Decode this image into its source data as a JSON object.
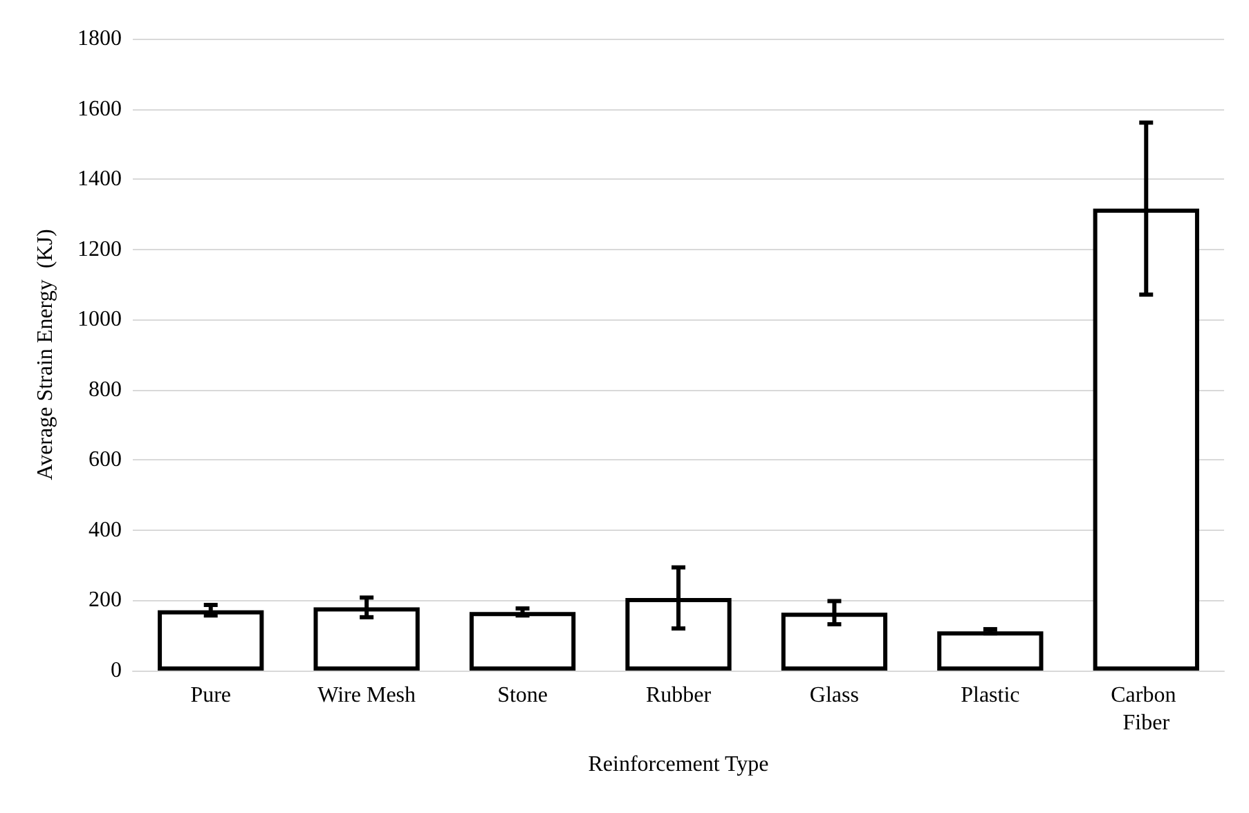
{
  "chart_data": {
    "type": "bar",
    "xlabel": "Reinforcement Type",
    "ylabel": "Average Strain Energy  (KJ)",
    "categories": [
      "Pure",
      "Wire Mesh",
      "Stone",
      "Rubber",
      "Glass",
      "Plastic",
      "Carbon Fiber"
    ],
    "values": [
      172,
      180,
      167,
      207,
      165,
      112,
      1316
    ],
    "errors": [
      15,
      28,
      10,
      87,
      33,
      6,
      245
    ],
    "color": "#ffffff",
    "ylim": [
      0,
      1800
    ],
    "yticks": [
      0,
      200,
      400,
      600,
      800,
      1000,
      1200,
      1400,
      1600,
      1800
    ],
    "grid": "y"
  }
}
